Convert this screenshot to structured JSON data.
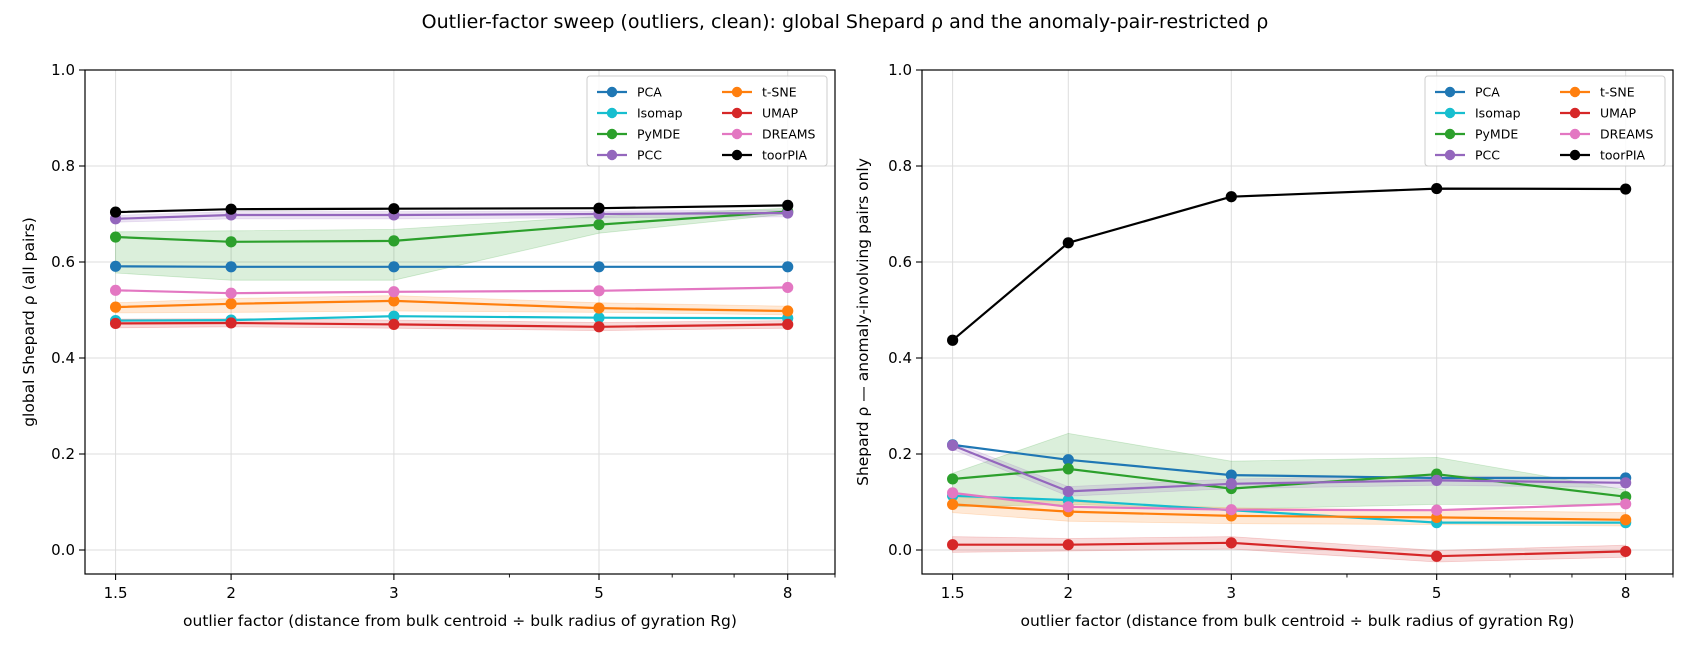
{
  "figure": {
    "title": "Outlier-factor sweep (outliers, clean): global Shepard ρ and the anomaly-pair-restricted ρ"
  },
  "chart_data": [
    {
      "type": "line",
      "xlabel": "outlier factor  (distance from bulk centroid ÷ bulk radius of gyration Rg)",
      "ylabel": "global Shepard ρ  (all pairs)",
      "xscale": "log",
      "x": [
        1.5,
        2,
        3,
        5,
        8
      ],
      "xticks": [
        "1.5",
        "2",
        "3",
        "5",
        "8"
      ],
      "xlim": [
        1.39,
        9.0
      ],
      "ylim": [
        -0.05,
        1.0
      ],
      "yticks": [
        "0.0",
        "0.2",
        "0.4",
        "0.6",
        "0.8",
        "1.0"
      ],
      "grid": true,
      "legend": "top-right, 2 columns",
      "series": [
        {
          "name": "PCA",
          "color": "#1f77b4",
          "values": [
            0.591,
            0.59,
            0.59,
            0.59,
            0.59
          ],
          "band": null
        },
        {
          "name": "Isomap",
          "color": "#17becf",
          "values": [
            0.478,
            0.479,
            0.487,
            0.484,
            0.483
          ],
          "band": null
        },
        {
          "name": "PyMDE",
          "color": "#2ca02c",
          "values": [
            0.652,
            0.642,
            0.644,
            0.678,
            0.705
          ],
          "band": {
            "lower": [
              0.577,
              0.562,
              0.562,
              0.66,
              0.7
            ],
            "upper": [
              0.663,
              0.665,
              0.668,
              0.695,
              0.712
            ]
          }
        },
        {
          "name": "PCC",
          "color": "#9467bd",
          "values": [
            0.69,
            0.698,
            0.698,
            0.7,
            0.702
          ],
          "band": {
            "lower": [
              0.683,
              0.69,
              0.69,
              0.692,
              0.694
            ],
            "upper": [
              0.697,
              0.705,
              0.705,
              0.706,
              0.708
            ]
          }
        },
        {
          "name": "t-SNE",
          "color": "#ff7f0e",
          "values": [
            0.506,
            0.513,
            0.519,
            0.504,
            0.498
          ],
          "band": {
            "lower": [
              0.494,
              0.495,
              0.498,
              0.495,
              0.49
            ],
            "upper": [
              0.515,
              0.524,
              0.53,
              0.515,
              0.508
            ]
          }
        },
        {
          "name": "UMAP",
          "color": "#d62728",
          "values": [
            0.472,
            0.473,
            0.47,
            0.465,
            0.47
          ],
          "band": {
            "lower": [
              0.463,
              0.465,
              0.462,
              0.457,
              0.462
            ],
            "upper": [
              0.481,
              0.482,
              0.479,
              0.474,
              0.478
            ]
          }
        },
        {
          "name": "DREAMS",
          "color": "#e377c2",
          "values": [
            0.541,
            0.535,
            0.538,
            0.54,
            0.547
          ],
          "band": null
        },
        {
          "name": "toorPIA",
          "color": "#000000",
          "values": [
            0.704,
            0.71,
            0.711,
            0.712,
            0.718
          ],
          "band": null
        }
      ]
    },
    {
      "type": "line",
      "xlabel": "outlier factor  (distance from bulk centroid ÷ bulk radius of gyration Rg)",
      "ylabel": "Shepard ρ — anomaly-involving pairs only",
      "xscale": "log",
      "x": [
        1.5,
        2,
        3,
        5,
        8
      ],
      "xticks": [
        "1.5",
        "2",
        "3",
        "5",
        "8"
      ],
      "xlim": [
        1.39,
        9.0
      ],
      "ylim": [
        -0.05,
        1.0
      ],
      "yticks": [
        "0.0",
        "0.2",
        "0.4",
        "0.6",
        "0.8",
        "1.0"
      ],
      "grid": true,
      "legend": "top-right, 2 columns",
      "series": [
        {
          "name": "PCA",
          "color": "#1f77b4",
          "values": [
            0.219,
            0.188,
            0.156,
            0.15,
            0.15
          ],
          "band": null
        },
        {
          "name": "Isomap",
          "color": "#17becf",
          "values": [
            0.113,
            0.104,
            0.083,
            0.057,
            0.057
          ],
          "band": null
        },
        {
          "name": "PyMDE",
          "color": "#2ca02c",
          "values": [
            0.148,
            0.169,
            0.128,
            0.158,
            0.111
          ],
          "band": {
            "lower": [
              0.09,
              0.095,
              0.085,
              0.095,
              0.095
            ],
            "upper": [
              0.16,
              0.243,
              0.185,
              0.193,
              0.125
            ]
          }
        },
        {
          "name": "PCC",
          "color": "#9467bd",
          "values": [
            0.218,
            0.122,
            0.138,
            0.145,
            0.14
          ],
          "band": {
            "lower": [
              0.21,
              0.112,
              0.128,
              0.135,
              0.13
            ],
            "upper": [
              0.225,
              0.132,
              0.148,
              0.155,
              0.15
            ]
          }
        },
        {
          "name": "t-SNE",
          "color": "#ff7f0e",
          "values": [
            0.095,
            0.08,
            0.071,
            0.068,
            0.063
          ],
          "band": {
            "lower": [
              0.078,
              0.06,
              0.055,
              0.053,
              0.05
            ],
            "upper": [
              0.11,
              0.1,
              0.088,
              0.083,
              0.078
            ]
          }
        },
        {
          "name": "UMAP",
          "color": "#d62728",
          "values": [
            0.011,
            0.011,
            0.015,
            -0.013,
            -0.003
          ],
          "band": {
            "lower": [
              -0.005,
              -0.002,
              0.002,
              -0.025,
              -0.015
            ],
            "upper": [
              0.028,
              0.024,
              0.028,
              -0.001,
              0.01
            ]
          }
        },
        {
          "name": "DREAMS",
          "color": "#e377c2",
          "values": [
            0.119,
            0.09,
            0.084,
            0.083,
            0.096
          ],
          "band": null
        },
        {
          "name": "toorPIA",
          "color": "#000000",
          "values": [
            0.437,
            0.64,
            0.736,
            0.753,
            0.752
          ],
          "band": null
        }
      ]
    }
  ]
}
